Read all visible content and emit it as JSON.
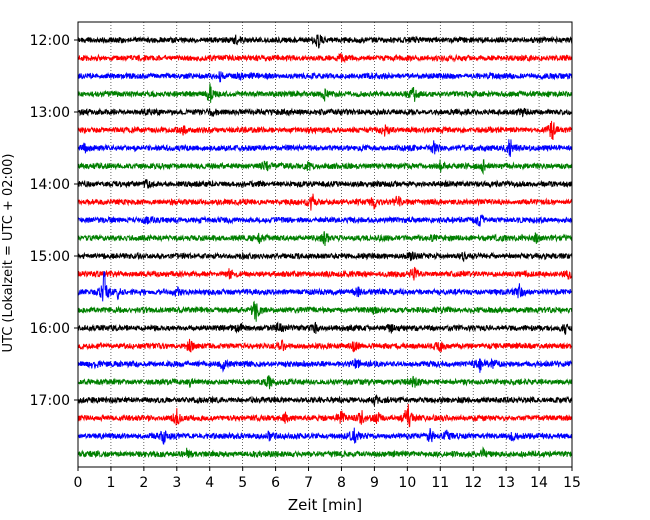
{
  "chart_data": {
    "type": "line",
    "title": "",
    "xlabel": "Zeit  [min]",
    "ylabel": "UTC (Lokalzeit = UTC + 02:00)",
    "xlim": [
      0,
      15
    ],
    "x_ticks": [
      "0",
      "1",
      "2",
      "3",
      "4",
      "5",
      "6",
      "7",
      "8",
      "9",
      "10",
      "11",
      "12",
      "13",
      "14",
      "15"
    ],
    "y_ticks": [
      {
        "label": "12:00",
        "trace": 0
      },
      {
        "label": "13:00",
        "trace": 4
      },
      {
        "label": "14:00",
        "trace": 8
      },
      {
        "label": "15:00",
        "trace": 12
      },
      {
        "label": "16:00",
        "trace": 16
      },
      {
        "label": "17:00",
        "trace": 20
      }
    ],
    "grid": "vertical-dotted",
    "trace_interval_minutes": 15,
    "color_cycle": [
      "#000000",
      "#ff0000",
      "#0000ff",
      "#008000"
    ],
    "traces": [
      {
        "start": "12:00",
        "events": [
          [
            4.8,
            0.3
          ],
          [
            7.3,
            0.9
          ]
        ]
      },
      {
        "start": "12:15",
        "events": [
          [
            8.0,
            0.3
          ]
        ]
      },
      {
        "start": "12:30",
        "events": [
          [
            4.3,
            0.4
          ],
          [
            4.9,
            0.3
          ]
        ]
      },
      {
        "start": "12:45",
        "events": [
          [
            4.0,
            0.8
          ],
          [
            7.5,
            0.6
          ],
          [
            10.2,
            0.6
          ]
        ]
      },
      {
        "start": "13:00",
        "events": [
          [
            4.1,
            0.3
          ],
          [
            13.5,
            0.3
          ]
        ]
      },
      {
        "start": "13:15",
        "events": [
          [
            3.2,
            0.3
          ],
          [
            9.3,
            0.4
          ],
          [
            14.4,
            1.0
          ]
        ]
      },
      {
        "start": "13:30",
        "events": [
          [
            0.2,
            0.4
          ],
          [
            10.8,
            0.5
          ],
          [
            13.1,
            1.0
          ]
        ]
      },
      {
        "start": "13:45",
        "events": [
          [
            5.7,
            0.4
          ],
          [
            7.0,
            0.4
          ],
          [
            11.0,
            0.4
          ],
          [
            12.3,
            0.5
          ]
        ]
      },
      {
        "start": "14:00",
        "events": [
          [
            2.1,
            0.3
          ]
        ]
      },
      {
        "start": "14:15",
        "events": [
          [
            7.1,
            0.8
          ],
          [
            9.0,
            0.5
          ],
          [
            9.7,
            0.5
          ]
        ]
      },
      {
        "start": "14:30",
        "events": [
          [
            2.1,
            0.3
          ],
          [
            12.2,
            0.4
          ]
        ]
      },
      {
        "start": "14:45",
        "events": [
          [
            5.5,
            0.3
          ],
          [
            7.5,
            0.5
          ],
          [
            10.8,
            0.3
          ],
          [
            13.9,
            0.4
          ]
        ]
      },
      {
        "start": "15:00",
        "events": [
          [
            10.1,
            0.4
          ],
          [
            11.7,
            0.3
          ]
        ]
      },
      {
        "start": "15:15",
        "events": [
          [
            4.6,
            0.3
          ],
          [
            10.2,
            0.5
          ],
          [
            14.9,
            0.4
          ]
        ]
      },
      {
        "start": "15:30",
        "events": [
          [
            0.8,
            1.8
          ],
          [
            1.2,
            0.5
          ],
          [
            3.0,
            0.4
          ],
          [
            8.5,
            0.4
          ],
          [
            13.4,
            0.6
          ]
        ]
      },
      {
        "start": "15:45",
        "events": [
          [
            5.4,
            1.0
          ],
          [
            9.0,
            0.3
          ]
        ]
      },
      {
        "start": "16:00",
        "events": [
          [
            4.9,
            0.5
          ],
          [
            6.1,
            0.4
          ],
          [
            7.2,
            0.4
          ],
          [
            9.5,
            0.3
          ],
          [
            14.8,
            0.4
          ]
        ]
      },
      {
        "start": "16:15",
        "events": [
          [
            3.4,
            0.6
          ],
          [
            6.2,
            0.4
          ],
          [
            8.4,
            0.5
          ],
          [
            11.0,
            0.4
          ]
        ]
      },
      {
        "start": "16:30",
        "events": [
          [
            0.5,
            0.6
          ],
          [
            4.4,
            0.5
          ],
          [
            8.4,
            0.6
          ],
          [
            12.2,
            0.6
          ],
          [
            12.6,
            0.4
          ]
        ]
      },
      {
        "start": "16:45",
        "events": [
          [
            3.4,
            0.3
          ],
          [
            5.8,
            0.5
          ],
          [
            10.2,
            0.4
          ]
        ]
      },
      {
        "start": "17:00",
        "events": [
          [
            9.0,
            0.4
          ]
        ]
      },
      {
        "start": "17:15",
        "events": [
          [
            3.0,
            0.7
          ],
          [
            6.3,
            0.4
          ],
          [
            8.0,
            0.6
          ],
          [
            8.6,
            0.6
          ],
          [
            9.1,
            0.5
          ],
          [
            10.0,
            1.5
          ]
        ]
      },
      {
        "start": "17:30",
        "events": [
          [
            2.6,
            0.5
          ],
          [
            5.8,
            0.3
          ],
          [
            8.4,
            0.7
          ],
          [
            10.7,
            0.6
          ],
          [
            11.2,
            0.5
          ],
          [
            13.2,
            0.4
          ]
        ]
      },
      {
        "start": "17:45",
        "events": [
          [
            3.3,
            0.4
          ],
          [
            12.3,
            0.4
          ]
        ]
      }
    ]
  }
}
